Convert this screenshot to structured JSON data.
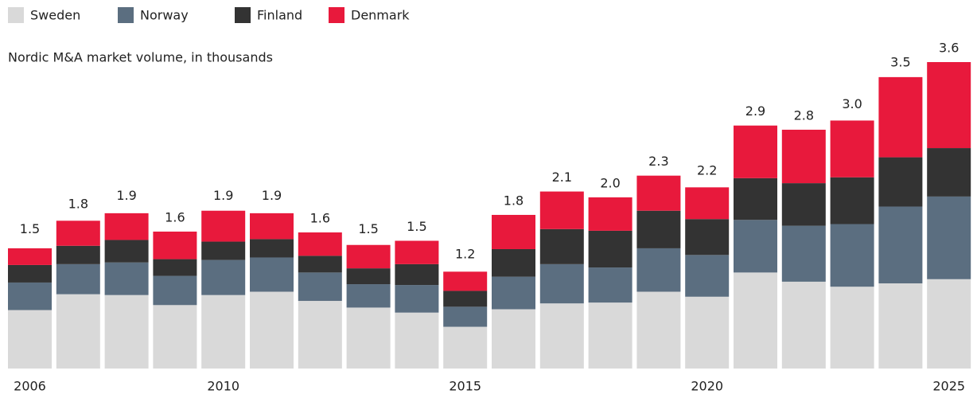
{
  "chart_data": {
    "type": "stacked_bar",
    "subtitle": "Nordic M&A market volume, in thousands",
    "categories": [
      "2006",
      null,
      null,
      null,
      "2010",
      null,
      null,
      null,
      null,
      "2015",
      null,
      null,
      null,
      null,
      "2020",
      null,
      null,
      null,
      null,
      "2025"
    ],
    "series": [
      {
        "name": "Sweden",
        "color": "#d9d9d9",
        "values": [
          0.7,
          0.89,
          0.88,
          0.76,
          0.88,
          0.92,
          0.81,
          0.73,
          0.67,
          0.5,
          0.71,
          0.78,
          0.79,
          0.92,
          0.86,
          1.15,
          1.04,
          0.98,
          1.02,
          1.07
        ]
      },
      {
        "name": "Norway",
        "color": "#5b6e80",
        "values": [
          0.33,
          0.36,
          0.39,
          0.35,
          0.42,
          0.41,
          0.34,
          0.28,
          0.33,
          0.24,
          0.39,
          0.47,
          0.42,
          0.52,
          0.5,
          0.63,
          0.67,
          0.75,
          0.92,
          0.99
        ]
      },
      {
        "name": "Finland",
        "color": "#333333",
        "values": [
          0.21,
          0.22,
          0.27,
          0.2,
          0.22,
          0.22,
          0.2,
          0.19,
          0.25,
          0.19,
          0.33,
          0.42,
          0.44,
          0.45,
          0.43,
          0.5,
          0.51,
          0.56,
          0.59,
          0.58
        ]
      },
      {
        "name": "Denmark",
        "color": "#e8193c",
        "values": [
          0.2,
          0.3,
          0.32,
          0.33,
          0.37,
          0.31,
          0.28,
          0.28,
          0.28,
          0.23,
          0.41,
          0.45,
          0.4,
          0.42,
          0.38,
          0.63,
          0.64,
          0.68,
          0.96,
          1.03
        ]
      }
    ],
    "totals": {
      "values": [
        1.5,
        1.8,
        1.9,
        1.6,
        1.9,
        1.9,
        1.6,
        1.5,
        1.5,
        1.2,
        1.8,
        2.1,
        2.0,
        2.3,
        2.2,
        2.9,
        2.8,
        3.0,
        3.5,
        3.6
      ],
      "value_labels": [
        "1.5",
        "1.8",
        "1.9",
        "1.6",
        "1.9",
        "1.9",
        "1.6",
        "1.5",
        "1.5",
        "1.2",
        "1.8",
        "2.1",
        "2.0",
        "2.3",
        "2.2",
        "2.9",
        "2.8",
        "3.0",
        "3.5",
        "3.6"
      ]
    }
  }
}
